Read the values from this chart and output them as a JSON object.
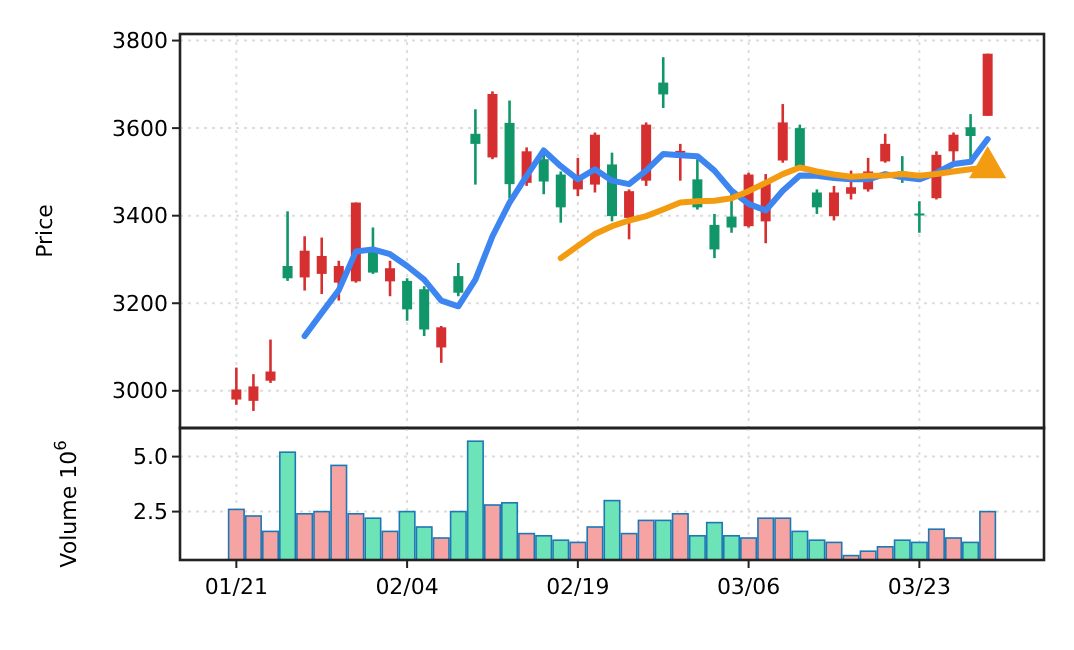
{
  "chart_data": [
    {
      "type": "candlestick",
      "ylabel": "Price",
      "categories": [
        null,
        null,
        null,
        null,
        null,
        null,
        null,
        null,
        null,
        null,
        null,
        null,
        null,
        null,
        null,
        null,
        null,
        null,
        null,
        null,
        null,
        null,
        null,
        null,
        null,
        null,
        null,
        null,
        null,
        null,
        null,
        null,
        null,
        null,
        null,
        null,
        null,
        null,
        null,
        null,
        null,
        null,
        null,
        null,
        null
      ],
      "ohlc": [
        [
          3003,
          3053,
          2968,
          2980
        ],
        [
          3010,
          3038,
          2954,
          2977
        ],
        [
          3044,
          3117,
          3018,
          3023
        ],
        [
          3257,
          3410,
          3251,
          3285
        ],
        [
          3320,
          3353,
          3229,
          3259
        ],
        [
          3308,
          3350,
          3221,
          3267
        ],
        [
          3285,
          3297,
          3206,
          3247
        ],
        [
          3430,
          3430,
          3247,
          3250
        ],
        [
          3270,
          3373,
          3267,
          3326
        ],
        [
          3280,
          3297,
          3216,
          3250
        ],
        [
          3186,
          3257,
          3160,
          3251
        ],
        [
          3140,
          3239,
          3125,
          3232
        ],
        [
          3145,
          3148,
          3064,
          3099
        ],
        [
          3224,
          3292,
          3216,
          3262
        ],
        [
          3564,
          3643,
          3471,
          3587
        ],
        [
          3678,
          3684,
          3529,
          3533
        ],
        [
          3472,
          3663,
          3440,
          3612
        ],
        [
          3547,
          3556,
          3468,
          3475
        ],
        [
          3478,
          3552,
          3449,
          3529
        ],
        [
          3419,
          3501,
          3384,
          3494
        ],
        [
          3483,
          3532,
          3445,
          3460
        ],
        [
          3585,
          3590,
          3453,
          3471
        ],
        [
          3399,
          3544,
          3387,
          3517
        ],
        [
          3456,
          3460,
          3346,
          3395
        ],
        [
          3608,
          3613,
          3468,
          3480
        ],
        [
          3677,
          3762,
          3646,
          3704
        ],
        [
          3548,
          3564,
          3480,
          3544
        ],
        [
          3419,
          3529,
          3414,
          3483
        ],
        [
          3323,
          3404,
          3303,
          3379
        ],
        [
          3373,
          3460,
          3361,
          3398
        ],
        [
          3494,
          3498,
          3373,
          3376
        ],
        [
          3475,
          3495,
          3337,
          3387
        ],
        [
          3613,
          3655,
          3521,
          3526
        ],
        [
          3513,
          3608,
          3506,
          3600
        ],
        [
          3419,
          3460,
          3404,
          3453
        ],
        [
          3453,
          3468,
          3389,
          3399
        ],
        [
          3465,
          3503,
          3437,
          3450
        ],
        [
          3501,
          3532,
          3455,
          3460
        ],
        [
          3564,
          3587,
          3521,
          3524
        ],
        [
          3483,
          3536,
          3475,
          3501
        ],
        [
          3402,
          3433,
          3361,
          3405
        ],
        [
          3539,
          3547,
          3437,
          3440
        ],
        [
          3585,
          3590,
          3524,
          3547
        ],
        [
          3582,
          3632,
          3526,
          3602
        ],
        [
          3770,
          3770,
          3628,
          3628
        ]
      ],
      "colors": [
        "#d62f30",
        "#d62f30",
        "#d62f30",
        "#119669",
        "#d62f30",
        "#d62f30",
        "#d62f30",
        "#d62f30",
        "#119669",
        "#d62f30",
        "#119669",
        "#119669",
        "#d62f30",
        "#119669",
        "#119669",
        "#d62f30",
        "#119669",
        "#d62f30",
        "#119669",
        "#119669",
        "#d62f30",
        "#d62f30",
        "#119669",
        "#d62f30",
        "#d62f30",
        "#119669",
        "#d62f30",
        "#119669",
        "#119669",
        "#119669",
        "#d62f30",
        "#d62f30",
        "#d62f30",
        "#119669",
        "#119669",
        "#d62f30",
        "#d62f30",
        "#d62f30",
        "#d62f30",
        "#119669",
        "#119669",
        "#d62f30",
        "#d62f30",
        "#119669",
        "#d62f30"
      ],
      "series": [
        {
          "type": "line",
          "color": "#3d85f0",
          "values": [
            null,
            null,
            null,
            null,
            3125,
            3178,
            3230,
            3318,
            3323,
            3312,
            3285,
            3254,
            3206,
            3193,
            3254,
            3353,
            3430,
            3491,
            3549,
            3513,
            3483,
            3506,
            3480,
            3472,
            3503,
            3541,
            3538,
            3536,
            3503,
            3457,
            3427,
            3412,
            3457,
            3492,
            3491,
            3486,
            3483,
            3483,
            3495,
            3488,
            3483,
            3498,
            3518,
            3523,
            3575
          ]
        },
        {
          "type": "line",
          "color": "#f39c12",
          "values": [
            null,
            null,
            null,
            null,
            null,
            null,
            null,
            null,
            null,
            null,
            null,
            null,
            null,
            null,
            null,
            null,
            null,
            null,
            null,
            3303,
            3331,
            3358,
            3376,
            3389,
            3399,
            3414,
            3430,
            3433,
            3434,
            3440,
            3456,
            3475,
            3495,
            3510,
            3501,
            3494,
            3489,
            3491,
            3492,
            3495,
            3491,
            3495,
            3501,
            3506,
            3510
          ]
        },
        {
          "type": "scatter",
          "color": "#f39c12",
          "marker": "triangle",
          "values": [
            null,
            null,
            null,
            null,
            null,
            null,
            null,
            null,
            null,
            null,
            null,
            null,
            null,
            null,
            null,
            null,
            null,
            null,
            null,
            null,
            null,
            null,
            null,
            null,
            null,
            null,
            null,
            null,
            null,
            null,
            null,
            null,
            null,
            null,
            null,
            null,
            null,
            null,
            null,
            null,
            null,
            null,
            null,
            null,
            3510
          ]
        }
      ],
      "ylim": [
        2915,
        3815
      ],
      "yticks": [
        3000,
        3200,
        3400,
        3600,
        3800
      ],
      "grid": true,
      "tick_labels": "y"
    },
    {
      "type": "bar",
      "ylabel": "Volume  10$^{6}$",
      "categories": [
        "01/21",
        null,
        null,
        null,
        null,
        null,
        null,
        null,
        null,
        null,
        "02/04",
        null,
        null,
        null,
        null,
        null,
        null,
        null,
        null,
        null,
        "02/19",
        null,
        null,
        null,
        null,
        null,
        null,
        null,
        null,
        null,
        "03/06",
        null,
        null,
        null,
        null,
        null,
        null,
        null,
        null,
        null,
        "03/23",
        null,
        null,
        null,
        null
      ],
      "values": [
        2.6,
        2.3,
        1.6,
        5.2,
        2.4,
        2.5,
        4.6,
        2.4,
        2.2,
        1.6,
        2.5,
        1.8,
        1.3,
        2.5,
        5.7,
        2.8,
        2.9,
        1.5,
        1.4,
        1.2,
        1.1,
        1.8,
        3.0,
        1.5,
        2.1,
        2.1,
        2.4,
        1.4,
        2.0,
        1.4,
        1.3,
        2.2,
        2.2,
        1.6,
        1.2,
        1.1,
        0.5,
        0.7,
        0.9,
        1.2,
        1.1,
        1.7,
        1.3,
        1.1,
        2.5
      ],
      "colors": [
        "#f5a3a3",
        "#f5a3a3",
        "#f5a3a3",
        "#6ce4b8",
        "#f5a3a3",
        "#f5a3a3",
        "#f5a3a3",
        "#f5a3a3",
        "#6ce4b8",
        "#f5a3a3",
        "#6ce4b8",
        "#6ce4b8",
        "#f5a3a3",
        "#6ce4b8",
        "#6ce4b8",
        "#f5a3a3",
        "#6ce4b8",
        "#f5a3a3",
        "#6ce4b8",
        "#6ce4b8",
        "#f5a3a3",
        "#f5a3a3",
        "#6ce4b8",
        "#f5a3a3",
        "#f5a3a3",
        "#6ce4b8",
        "#f5a3a3",
        "#6ce4b8",
        "#6ce4b8",
        "#6ce4b8",
        "#f5a3a3",
        "#f5a3a3",
        "#f5a3a3",
        "#6ce4b8",
        "#6ce4b8",
        "#f5a3a3",
        "#f5a3a3",
        "#f5a3a3",
        "#f5a3a3",
        "#6ce4b8",
        "#6ce4b8",
        "#f5a3a3",
        "#f5a3a3",
        "#6ce4b8",
        "#f5a3a3"
      ],
      "ylim": [
        0.3,
        6.3
      ],
      "yticks": [
        {
          "value": 2.5,
          "label": "2.5"
        },
        {
          "value": 5,
          "label": "5.0"
        }
      ],
      "grid": true
    }
  ]
}
